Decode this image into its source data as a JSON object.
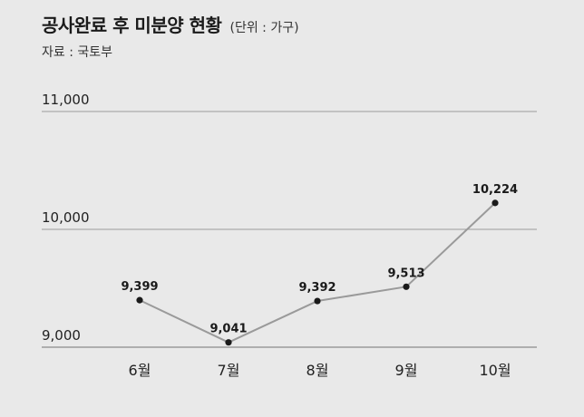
{
  "header": {
    "title": "공사완료 후 미분양 현황",
    "unit": "(단위 : 가구)",
    "source": "자료 : 국토부"
  },
  "chart_data": {
    "type": "line",
    "title": "공사완료 후 미분양 현황",
    "xlabel": "",
    "ylabel": "",
    "categories": [
      "6월",
      "7월",
      "8월",
      "9월",
      "10월"
    ],
    "series": [
      {
        "values": [
          9399,
          9041,
          9392,
          9513,
          10224
        ]
      }
    ],
    "value_labels": [
      "9,399",
      "9,041",
      "9,392",
      "9,513",
      "10,224"
    ],
    "ylim": [
      9000,
      11000
    ],
    "yticks": [
      9000,
      10000,
      11000
    ],
    "ytick_labels": [
      "9,000",
      "10,000",
      "11,000"
    ],
    "grid": true,
    "legend": "none",
    "colors": {
      "line": "#9a9a9a",
      "marker": "#1a1a1a",
      "grid": "#9a9a9a",
      "background": "#e9e9e9"
    }
  }
}
